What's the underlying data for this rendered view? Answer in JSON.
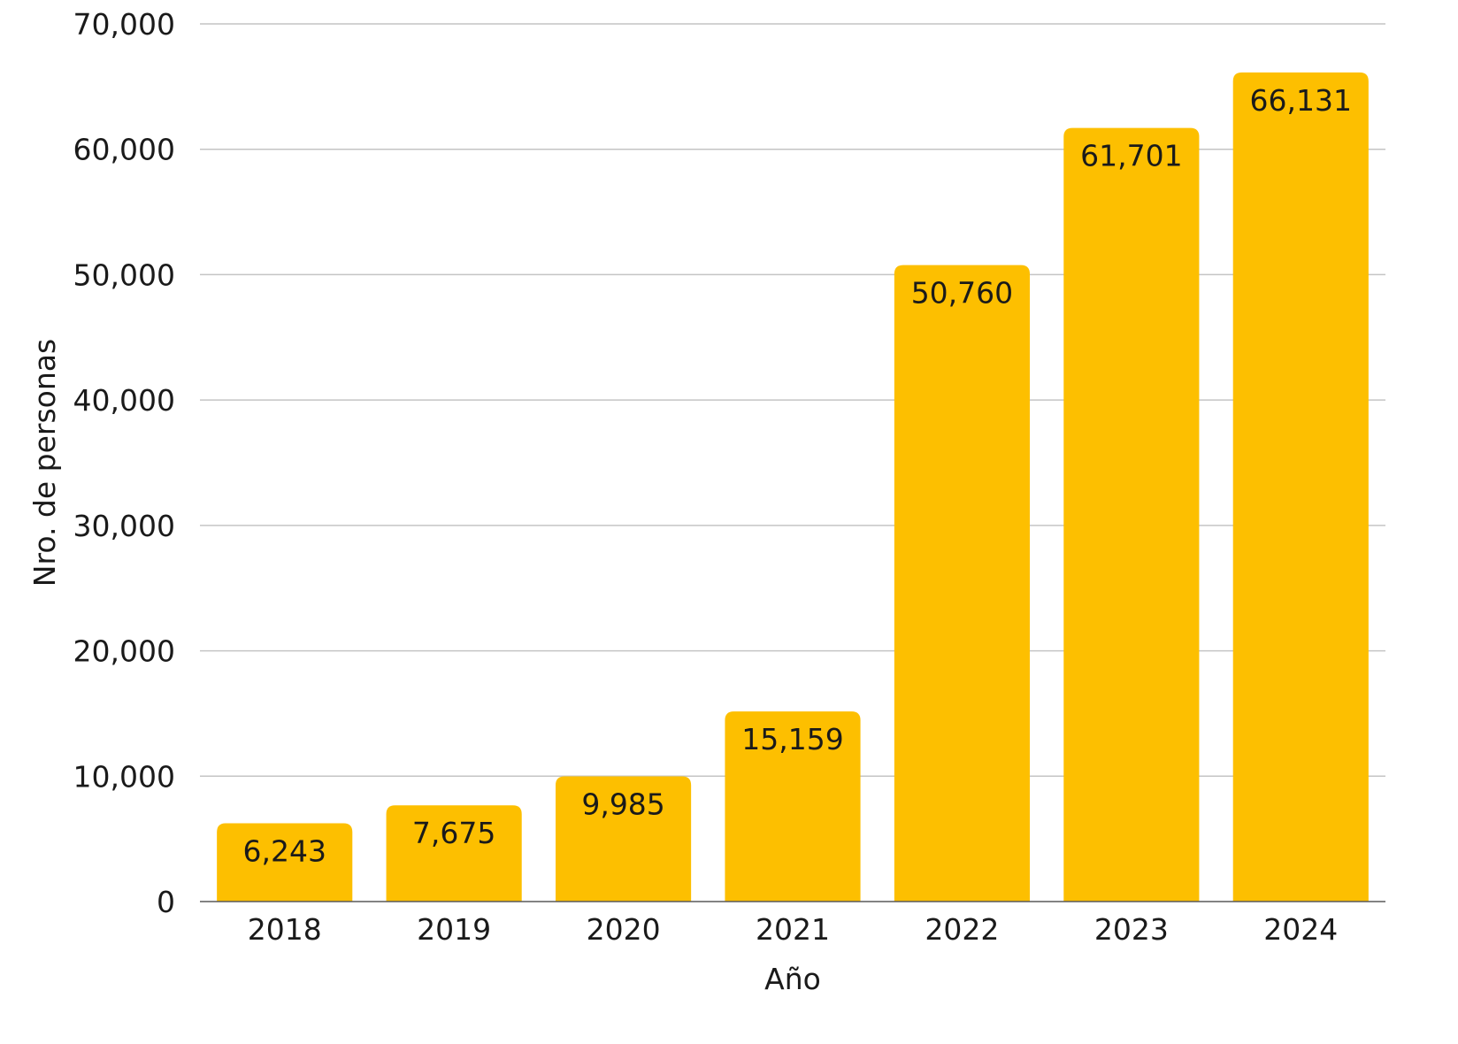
{
  "chart_data": {
    "type": "bar",
    "title": "",
    "xlabel": "Año",
    "ylabel": "Nro. de personas",
    "categories": [
      "2018",
      "2019",
      "2020",
      "2021",
      "2022",
      "2023",
      "2024"
    ],
    "values": [
      6243,
      7675,
      9985,
      15159,
      50760,
      61701,
      66131
    ],
    "value_labels": [
      "6,243",
      "7,675",
      "9,985",
      "15,159",
      "50,760",
      "61,701",
      "66,131"
    ],
    "ylim": [
      0,
      70000
    ],
    "yticks": [
      0,
      10000,
      20000,
      30000,
      40000,
      50000,
      60000,
      70000
    ],
    "ytick_labels": [
      "0",
      "10,000",
      "20,000",
      "30,000",
      "40,000",
      "50,000",
      "60,000",
      "70,000"
    ],
    "grid": true,
    "legend": "none",
    "bar_color": "#FDBF00"
  }
}
